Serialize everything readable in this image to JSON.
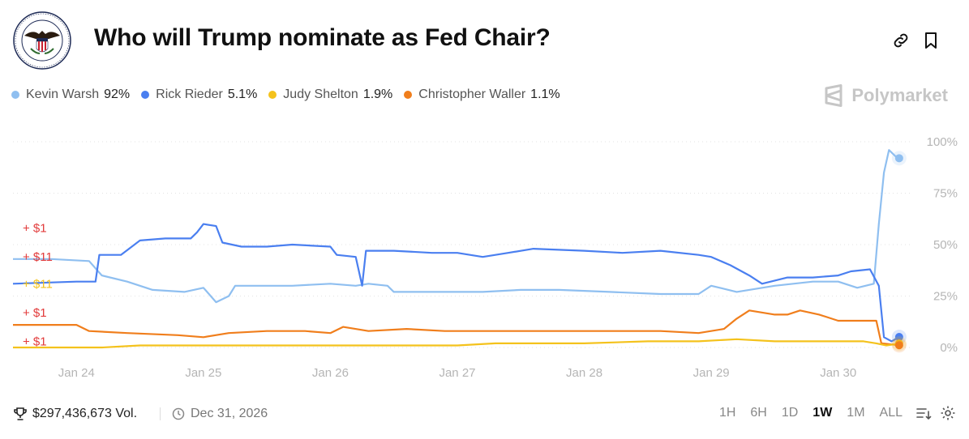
{
  "header": {
    "title": "Who will Trump nominate as Fed Chair?",
    "link_icon": "link-icon",
    "bookmark_icon": "bookmark-icon",
    "seal_icon": "federal-reserve-seal-icon"
  },
  "legend": [
    {
      "name": "Kevin Warsh",
      "pct": "92%",
      "color": "#8fbff0"
    },
    {
      "name": "Rick Rieder",
      "pct": "5.1%",
      "color": "#4a7ff0"
    },
    {
      "name": "Judy Shelton",
      "pct": "1.9%",
      "color": "#f4c21c"
    },
    {
      "name": "Christopher Waller",
      "pct": "1.1%",
      "color": "#f07e1c"
    }
  ],
  "brand": {
    "name": "Polymarket"
  },
  "footer": {
    "volume": "$297,436,673 Vol.",
    "end_date": "Dec 31, 2026",
    "ranges": [
      "1H",
      "6H",
      "1D",
      "1W",
      "1M",
      "ALL"
    ],
    "active_range": "1W"
  },
  "chart_data": {
    "type": "line",
    "title": "Who will Trump nominate as Fed Chair?",
    "x_unit": "days since Jan 24 00:00",
    "x_range": [
      -0.5,
      6.5
    ],
    "xticks": [
      "Jan 24",
      "Jan 25",
      "Jan 26",
      "Jan 27",
      "Jan 28",
      "Jan 29",
      "Jan 30"
    ],
    "ylim": [
      0,
      100
    ],
    "yticks": [
      "100%",
      "75%",
      "50%",
      "25%",
      "0%"
    ],
    "grid": true,
    "trade_labels": [
      {
        "text": "+ $1",
        "color": "#e23b3b"
      },
      {
        "text": "+ $11",
        "color": "#e23b3b"
      },
      {
        "text": "+ $11",
        "color": "#f4c21c"
      },
      {
        "text": "+ $1",
        "color": "#e23b3b"
      },
      {
        "text": "+ $1",
        "color": "#e23b3b"
      }
    ],
    "series": [
      {
        "name": "Kevin Warsh",
        "color": "#8fbff0",
        "points": [
          [
            -0.5,
            43
          ],
          [
            -0.2,
            43
          ],
          [
            0.1,
            42
          ],
          [
            0.2,
            35
          ],
          [
            0.4,
            32
          ],
          [
            0.6,
            28
          ],
          [
            0.85,
            27
          ],
          [
            1.0,
            29
          ],
          [
            1.1,
            22
          ],
          [
            1.2,
            25
          ],
          [
            1.25,
            30
          ],
          [
            1.4,
            30
          ],
          [
            1.7,
            30
          ],
          [
            2.0,
            31
          ],
          [
            2.2,
            30
          ],
          [
            2.3,
            31
          ],
          [
            2.45,
            30
          ],
          [
            2.5,
            27
          ],
          [
            2.8,
            27
          ],
          [
            3.2,
            27
          ],
          [
            3.5,
            28
          ],
          [
            3.8,
            28
          ],
          [
            4.2,
            27
          ],
          [
            4.6,
            26
          ],
          [
            4.9,
            26
          ],
          [
            5.0,
            30
          ],
          [
            5.2,
            27
          ],
          [
            5.5,
            30
          ],
          [
            5.8,
            32
          ],
          [
            6.0,
            32
          ],
          [
            6.15,
            29
          ],
          [
            6.28,
            31
          ],
          [
            6.32,
            60
          ],
          [
            6.36,
            85
          ],
          [
            6.4,
            96
          ],
          [
            6.45,
            93
          ],
          [
            6.48,
            92
          ]
        ]
      },
      {
        "name": "Rick Rieder",
        "color": "#4a7ff0",
        "points": [
          [
            -0.5,
            31
          ],
          [
            0.0,
            32
          ],
          [
            0.15,
            32
          ],
          [
            0.18,
            45
          ],
          [
            0.35,
            45
          ],
          [
            0.5,
            52
          ],
          [
            0.7,
            53
          ],
          [
            0.9,
            53
          ],
          [
            0.95,
            56
          ],
          [
            1.0,
            60
          ],
          [
            1.1,
            59
          ],
          [
            1.15,
            51
          ],
          [
            1.3,
            49
          ],
          [
            1.5,
            49
          ],
          [
            1.7,
            50
          ],
          [
            2.0,
            49
          ],
          [
            2.05,
            45
          ],
          [
            2.2,
            44
          ],
          [
            2.25,
            30
          ],
          [
            2.28,
            47
          ],
          [
            2.5,
            47
          ],
          [
            2.8,
            46
          ],
          [
            3.0,
            46
          ],
          [
            3.2,
            44
          ],
          [
            3.4,
            46
          ],
          [
            3.6,
            48
          ],
          [
            4.0,
            47
          ],
          [
            4.3,
            46
          ],
          [
            4.6,
            47
          ],
          [
            4.9,
            45
          ],
          [
            5.0,
            44
          ],
          [
            5.15,
            40
          ],
          [
            5.3,
            35
          ],
          [
            5.4,
            31
          ],
          [
            5.6,
            34
          ],
          [
            5.8,
            34
          ],
          [
            6.0,
            35
          ],
          [
            6.1,
            37
          ],
          [
            6.25,
            38
          ],
          [
            6.32,
            30
          ],
          [
            6.36,
            5
          ],
          [
            6.42,
            3
          ],
          [
            6.48,
            5.1
          ]
        ]
      },
      {
        "name": "Judy Shelton",
        "color": "#f4c21c",
        "points": [
          [
            -0.5,
            0
          ],
          [
            0.2,
            0
          ],
          [
            0.5,
            1
          ],
          [
            1.0,
            1
          ],
          [
            1.5,
            1
          ],
          [
            2.0,
            1
          ],
          [
            2.5,
            1
          ],
          [
            3.0,
            1
          ],
          [
            3.3,
            2
          ],
          [
            3.5,
            2
          ],
          [
            4.0,
            2
          ],
          [
            4.5,
            3
          ],
          [
            4.9,
            3
          ],
          [
            5.2,
            4
          ],
          [
            5.5,
            3
          ],
          [
            5.8,
            3
          ],
          [
            6.0,
            3
          ],
          [
            6.2,
            3
          ],
          [
            6.3,
            2
          ],
          [
            6.38,
            1
          ],
          [
            6.48,
            1.9
          ]
        ]
      },
      {
        "name": "Christopher Waller",
        "color": "#f07e1c",
        "points": [
          [
            -0.5,
            11
          ],
          [
            0.0,
            11
          ],
          [
            0.1,
            8
          ],
          [
            0.4,
            7
          ],
          [
            0.8,
            6
          ],
          [
            1.0,
            5
          ],
          [
            1.2,
            7
          ],
          [
            1.5,
            8
          ],
          [
            1.8,
            8
          ],
          [
            2.0,
            7
          ],
          [
            2.1,
            10
          ],
          [
            2.3,
            8
          ],
          [
            2.6,
            9
          ],
          [
            2.9,
            8
          ],
          [
            3.3,
            8
          ],
          [
            3.8,
            8
          ],
          [
            4.2,
            8
          ],
          [
            4.6,
            8
          ],
          [
            4.9,
            7
          ],
          [
            5.1,
            9
          ],
          [
            5.2,
            14
          ],
          [
            5.3,
            18
          ],
          [
            5.5,
            16
          ],
          [
            5.6,
            16
          ],
          [
            5.7,
            18
          ],
          [
            5.85,
            16
          ],
          [
            6.0,
            13
          ],
          [
            6.3,
            13
          ],
          [
            6.34,
            2
          ],
          [
            6.48,
            1.1
          ]
        ]
      }
    ]
  }
}
